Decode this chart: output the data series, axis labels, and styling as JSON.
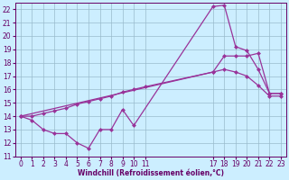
{
  "xlabel": "Windchill (Refroidissement éolien,°C)",
  "background_color": "#cceeff",
  "line_color": "#993399",
  "xlim": [
    -0.5,
    23.5
  ],
  "ylim": [
    11,
    22.5
  ],
  "xticks": [
    0,
    1,
    2,
    3,
    4,
    5,
    6,
    7,
    8,
    9,
    10,
    11,
    17,
    18,
    19,
    20,
    21,
    22,
    23
  ],
  "yticks": [
    11,
    12,
    13,
    14,
    15,
    16,
    17,
    18,
    19,
    20,
    21,
    22
  ],
  "grid_color": "#99bbcc",
  "s1_x": [
    0,
    1,
    2,
    3,
    4,
    5,
    6,
    7,
    8,
    9,
    10,
    17,
    18,
    19,
    20,
    21,
    22,
    23
  ],
  "s1_y": [
    14.0,
    13.7,
    13.0,
    12.7,
    12.7,
    12.0,
    11.6,
    13.0,
    13.0,
    14.5,
    13.3,
    22.2,
    22.3,
    19.2,
    18.9,
    17.5,
    15.7,
    15.7
  ],
  "s2_x": [
    0,
    17,
    18,
    19,
    20,
    21,
    22,
    23
  ],
  "s2_y": [
    14.0,
    17.3,
    18.5,
    18.5,
    18.5,
    18.7,
    15.7,
    15.7
  ],
  "s3_x": [
    0,
    1,
    2,
    3,
    4,
    5,
    6,
    7,
    8,
    9,
    10,
    11,
    17,
    18,
    19,
    20,
    21,
    22,
    23
  ],
  "s3_y": [
    14.0,
    14.0,
    14.2,
    14.4,
    14.6,
    14.9,
    15.1,
    15.3,
    15.5,
    15.8,
    16.0,
    16.2,
    17.3,
    17.5,
    17.3,
    17.0,
    16.3,
    15.5,
    15.5
  ],
  "tick_color": "#660066",
  "tick_fontsize": 5.5,
  "xlabel_fontsize": 5.5,
  "marker_size": 2.5,
  "line_width": 0.9
}
